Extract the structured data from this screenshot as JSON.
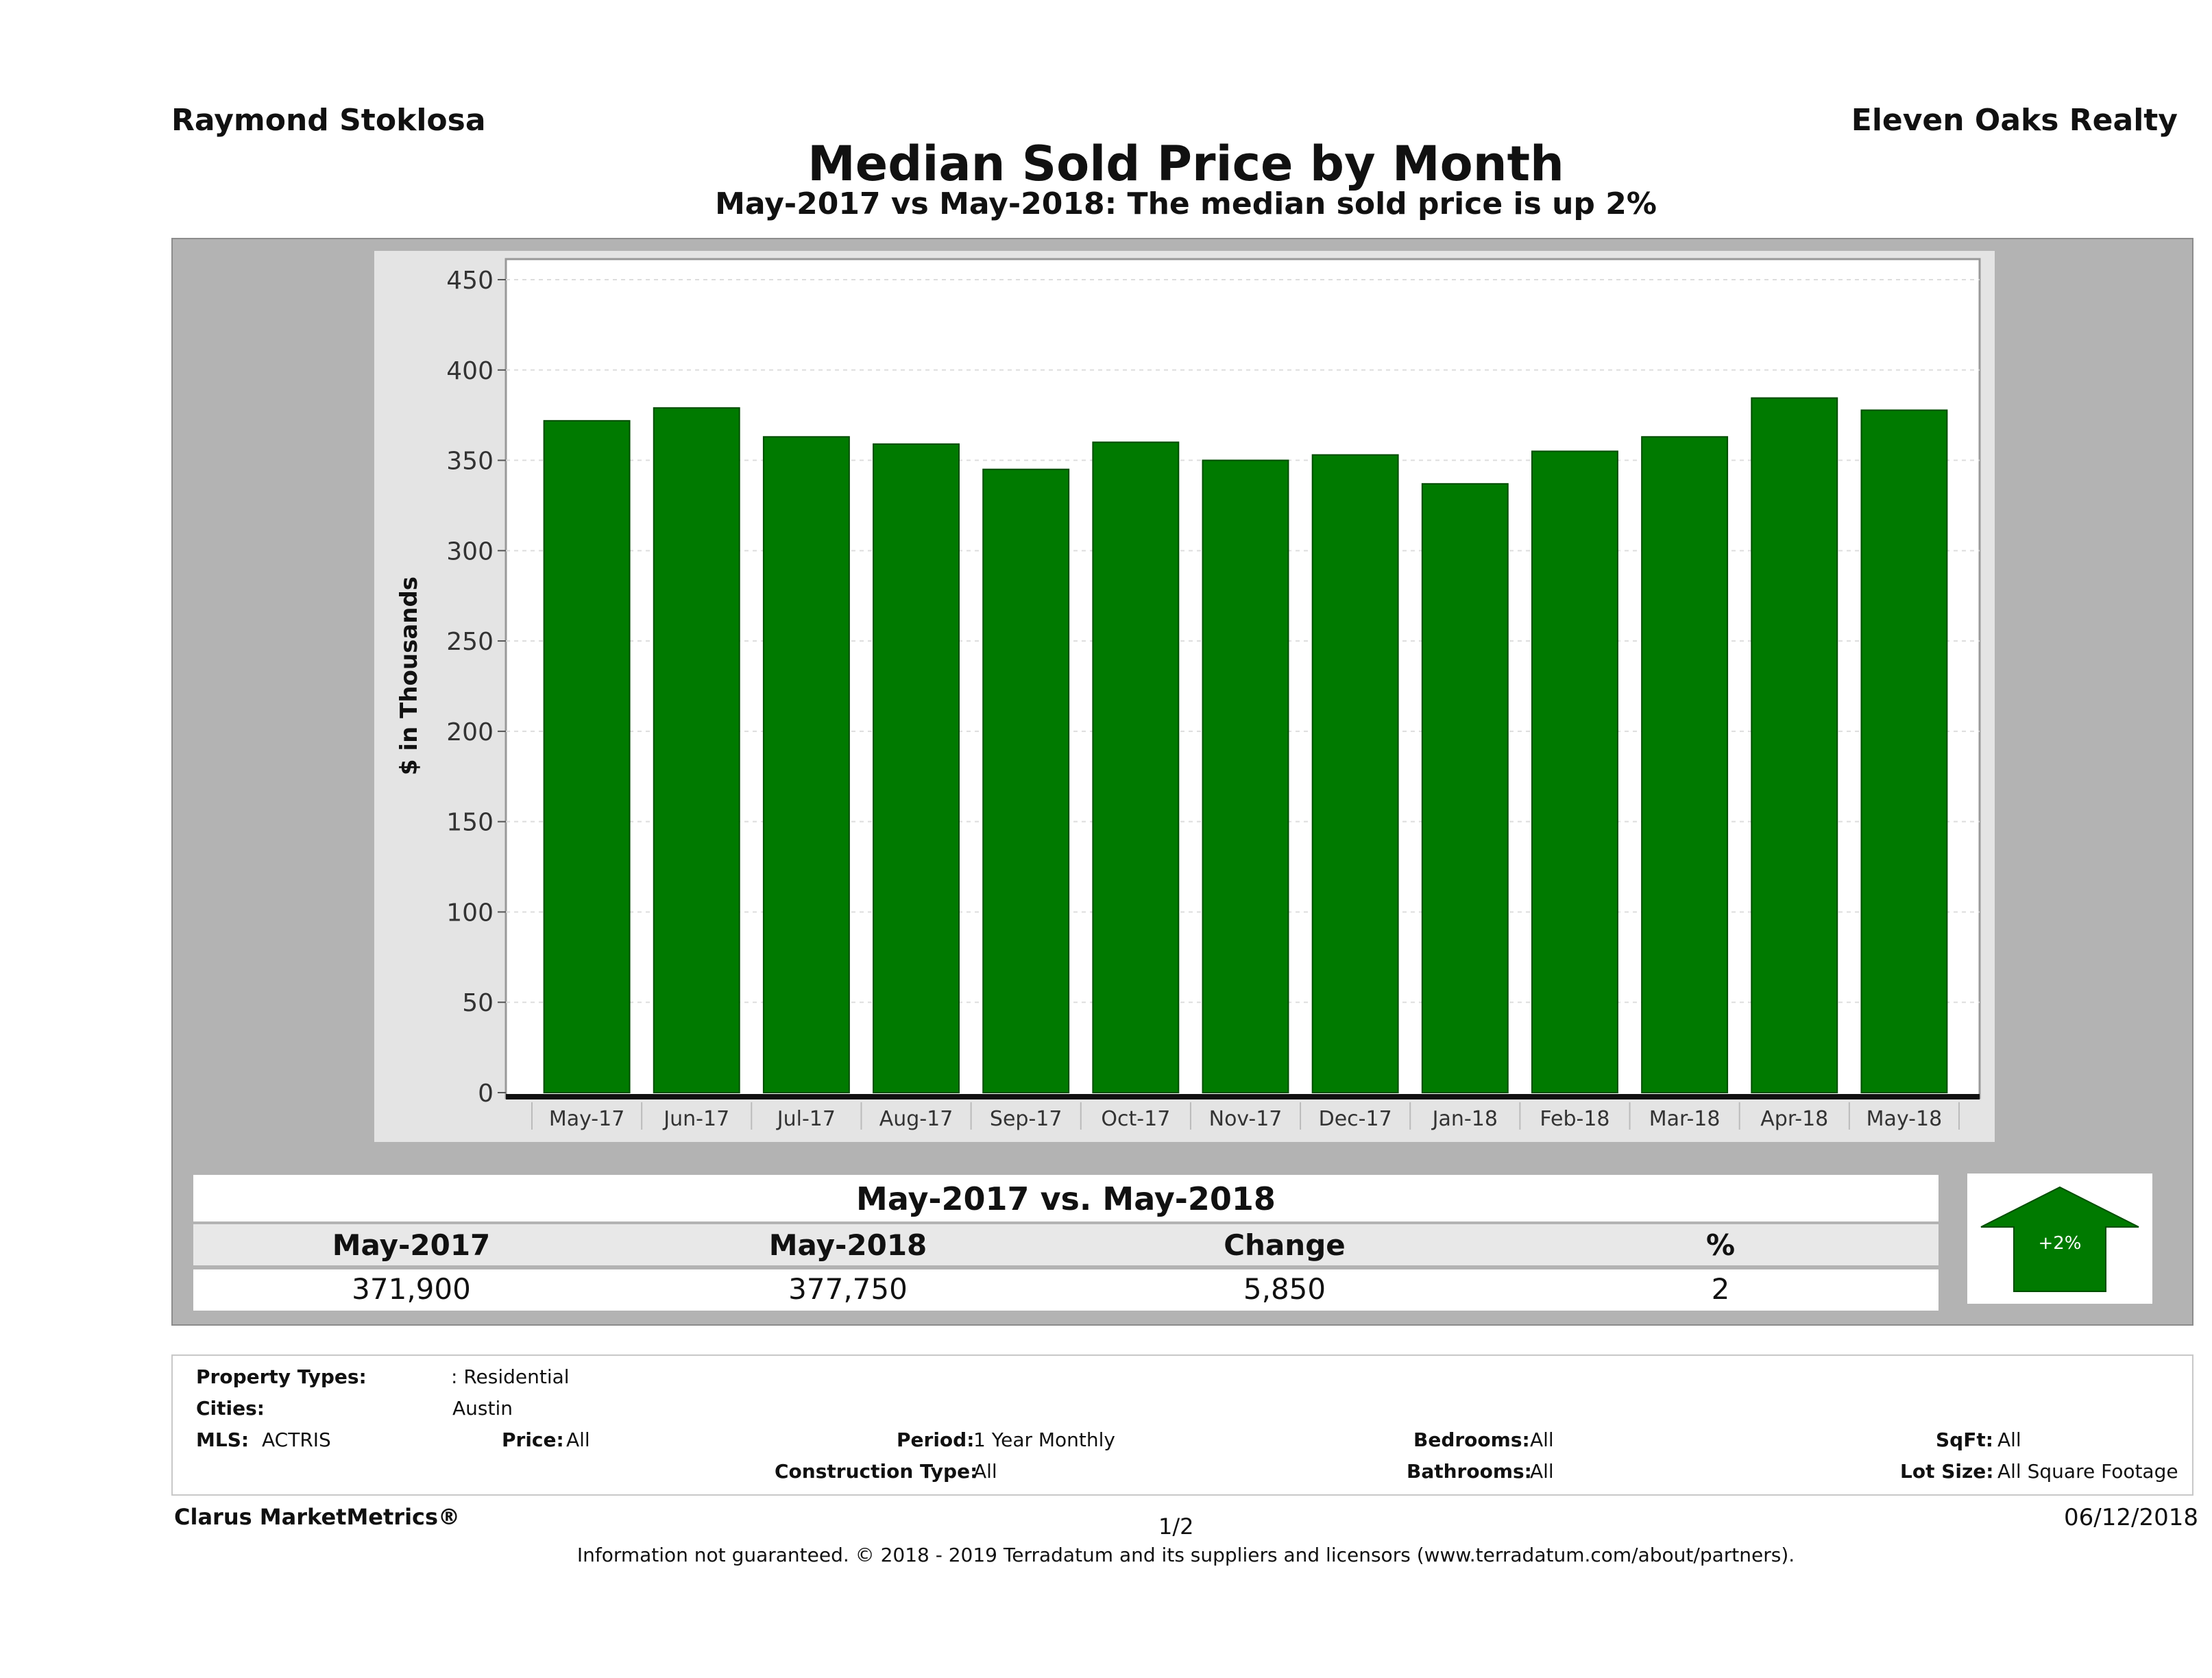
{
  "header": {
    "agent": "Raymond Stoklosa",
    "company": "Eleven Oaks Realty",
    "title": "Median Sold Price by Month",
    "subtitle": "May-2017 vs May-2018: The median sold price is up 2%"
  },
  "chart_data": {
    "type": "bar",
    "categories": [
      "May-17",
      "Jun-17",
      "Jul-17",
      "Aug-17",
      "Sep-17",
      "Oct-17",
      "Nov-17",
      "Dec-17",
      "Jan-18",
      "Feb-18",
      "Mar-18",
      "Apr-18",
      "May-18"
    ],
    "values": [
      371.9,
      379,
      363,
      359,
      345,
      360,
      350,
      353,
      337,
      355,
      363,
      384.5,
      377.75
    ],
    "ylabel": "$ in Thousands",
    "ylim": [
      0,
      450
    ],
    "yticks": [
      0,
      50,
      100,
      150,
      200,
      250,
      300,
      350,
      400,
      450
    ],
    "grid": true,
    "bar_color": "#007a00"
  },
  "comparison": {
    "title": "May-2017 vs. May-2018",
    "headers": [
      "May-2017",
      "May-2018",
      "Change",
      "%"
    ],
    "values": [
      "371,900",
      "377,750",
      "5,850",
      "2"
    ],
    "badge": "+2%",
    "badge_color": "#007a00"
  },
  "filters": {
    "property_types_label": "Property Types:",
    "property_types_value": ": Residential",
    "cities_label": "Cities:",
    "cities_value": "Austin",
    "mls_label": "MLS:",
    "mls_value": "ACTRIS",
    "price_label": "Price:",
    "price_value": "All",
    "period_label": "Period:",
    "period_value": "1 Year Monthly",
    "construction_label": "Construction Type:",
    "construction_value": "All",
    "bedrooms_label": "Bedrooms:",
    "bedrooms_value": "All",
    "bathrooms_label": "Bathrooms:",
    "bathrooms_value": "All",
    "sqft_label": "SqFt:",
    "sqft_value": "All",
    "lotsize_label": "Lot Size:",
    "lotsize_value": "All Square Footage"
  },
  "footer": {
    "brand": "Clarus MarketMetrics®",
    "page": "1/2",
    "date": "06/12/2018",
    "disclaimer": "Information not guaranteed. © 2018 - 2019 Terradatum and its suppliers and licensors (www.terradatum.com/about/partners)."
  }
}
